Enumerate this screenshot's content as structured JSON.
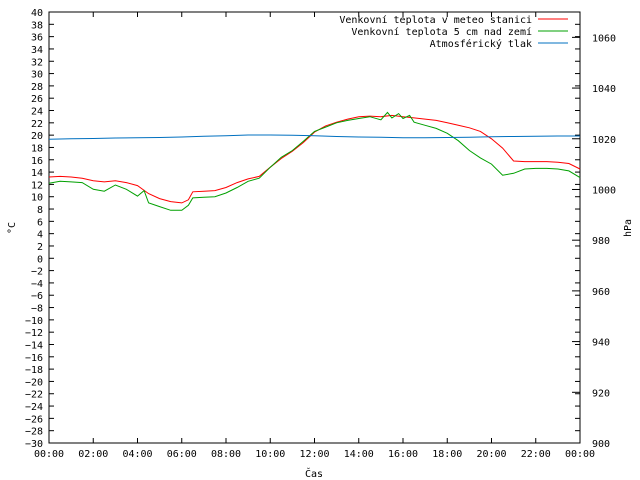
{
  "chart_data": {
    "type": "line",
    "xlabel": "Čas",
    "ylabel": "°C",
    "y2label": "hPa",
    "x_ticks": [
      "00:00",
      "02:00",
      "04:00",
      "06:00",
      "08:00",
      "10:00",
      "12:00",
      "14:00",
      "16:00",
      "18:00",
      "20:00",
      "22:00",
      "00:00"
    ],
    "xlim": [
      0,
      24
    ],
    "ylim": [
      -30,
      40
    ],
    "y_tick_step": 2,
    "y2lim": [
      900,
      1070
    ],
    "y2_ticks": [
      900,
      920,
      940,
      960,
      980,
      1000,
      1020,
      1040,
      1060
    ],
    "grid": false,
    "legend_position": "top-right",
    "series": [
      {
        "name": "Venkovní teplota v meteo stanici",
        "color": "#ff0000",
        "axis": "left",
        "x": [
          0,
          0.5,
          1,
          1.5,
          2,
          2.5,
          3,
          3.5,
          4,
          4.5,
          5,
          5.5,
          6,
          6.3,
          6.5,
          7,
          7.5,
          8,
          8.5,
          9,
          9.5,
          10,
          10.5,
          11,
          11.5,
          12,
          12.5,
          13,
          13.5,
          14,
          14.5,
          15,
          15.5,
          16,
          16.5,
          17,
          17.5,
          18,
          18.5,
          19,
          19.5,
          20,
          20.5,
          21,
          21.5,
          22,
          22.5,
          23,
          23.5,
          24
        ],
        "y": [
          13.2,
          13.3,
          13.2,
          13.0,
          12.6,
          12.4,
          12.6,
          12.3,
          11.8,
          10.5,
          9.7,
          9.2,
          9.0,
          9.5,
          10.8,
          10.9,
          11.0,
          11.5,
          12.3,
          12.9,
          13.3,
          14.8,
          16.2,
          17.4,
          18.8,
          20.5,
          21.5,
          22.1,
          22.6,
          23.0,
          23.1,
          23.0,
          23.2,
          23.0,
          22.8,
          22.6,
          22.4,
          22.0,
          21.6,
          21.2,
          20.6,
          19.4,
          17.9,
          15.8,
          15.7,
          15.7,
          15.7,
          15.6,
          15.4,
          14.5
        ]
      },
      {
        "name": "Venkovní teplota 5 cm nad zemí",
        "color": "#00a000",
        "axis": "left",
        "x": [
          0,
          0.5,
          1,
          1.5,
          2,
          2.5,
          3,
          3.5,
          4,
          4.3,
          4.5,
          5,
          5.5,
          6,
          6.3,
          6.5,
          7,
          7.5,
          8,
          8.5,
          9,
          9.5,
          10,
          10.5,
          11,
          11.5,
          12,
          12.5,
          13,
          13.5,
          14,
          14.5,
          15,
          15.3,
          15.5,
          15.8,
          16,
          16.3,
          16.5,
          17,
          17.5,
          18,
          18.5,
          19,
          19.5,
          20,
          20.5,
          21,
          21.5,
          22,
          22.5,
          23,
          23.5,
          24
        ],
        "y": [
          12.2,
          12.5,
          12.4,
          12.3,
          11.2,
          10.9,
          11.9,
          11.2,
          10.1,
          11.0,
          9.0,
          8.4,
          7.8,
          7.8,
          8.6,
          9.8,
          9.9,
          10.0,
          10.6,
          11.5,
          12.5,
          13.0,
          14.8,
          16.4,
          17.5,
          19.0,
          20.6,
          21.3,
          22.0,
          22.4,
          22.7,
          23.0,
          22.5,
          23.7,
          22.8,
          23.5,
          22.7,
          23.2,
          22.1,
          21.6,
          21.1,
          20.3,
          19.1,
          17.5,
          16.3,
          15.3,
          13.5,
          13.8,
          14.5,
          14.6,
          14.6,
          14.5,
          14.2,
          13.1
        ]
      },
      {
        "name": "Atmosférický tlak",
        "color": "#0070c0",
        "axis": "right",
        "x": [
          0,
          1,
          2,
          3,
          4,
          5,
          6,
          7,
          8,
          9,
          10,
          11,
          12,
          13,
          14,
          15,
          16,
          17,
          18,
          19,
          20,
          21,
          22,
          23,
          24
        ],
        "y": [
          1019.8,
          1020.0,
          1020.1,
          1020.3,
          1020.4,
          1020.5,
          1020.7,
          1021.0,
          1021.2,
          1021.5,
          1021.5,
          1021.4,
          1021.2,
          1020.9,
          1020.7,
          1020.6,
          1020.4,
          1020.4,
          1020.5,
          1020.6,
          1020.8,
          1020.9,
          1021.0,
          1021.1,
          1021.1
        ]
      }
    ]
  }
}
